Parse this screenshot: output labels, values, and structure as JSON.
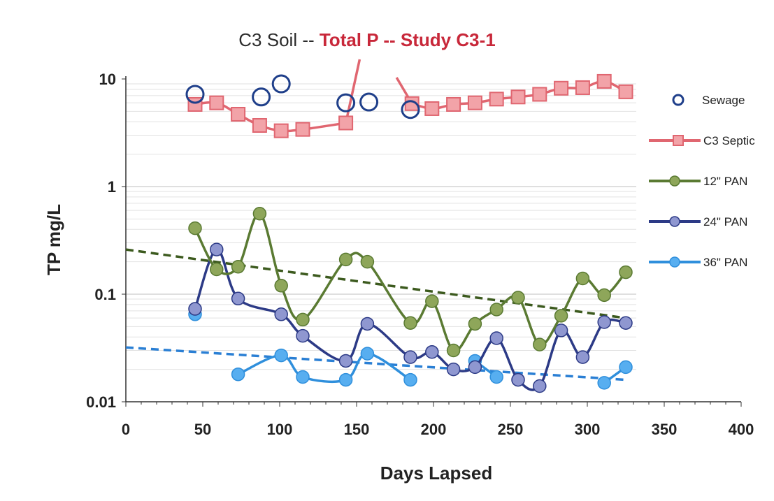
{
  "chart_data": {
    "type": "line",
    "title_parts": [
      "C3 Soil -- ",
      "Total P -- Study C3-1"
    ],
    "xlabel": "Days Lapsed",
    "ylabel": "TP mg/L",
    "xlim": [
      0,
      400
    ],
    "ylim": [
      0.01,
      10
    ],
    "yscale": "log",
    "x_ticks": [
      "0",
      "50",
      "100",
      "150",
      "200",
      "250",
      "300",
      "350",
      "400"
    ],
    "y_ticks": [
      "0.01",
      "0.1",
      "1",
      "10"
    ],
    "grid": true,
    "legend_position": "right",
    "series": [
      {
        "name": "Sewage",
        "color": "#1f3f8a",
        "style": "markers",
        "marker": "open-circle",
        "x": [
          45,
          88,
          101,
          143,
          158,
          185
        ],
        "y": [
          7.2,
          6.8,
          9.0,
          6.0,
          6.1,
          5.2
        ]
      },
      {
        "name": "C3 Septic",
        "color": "#e06670",
        "style": "line",
        "marker": "square",
        "x": [
          45,
          59,
          73,
          87,
          101,
          115,
          143,
          186,
          199,
          213,
          227,
          241,
          255,
          269,
          283,
          297,
          311,
          325
        ],
        "y": [
          5.8,
          6.0,
          4.7,
          3.7,
          3.3,
          3.4,
          3.9,
          5.9,
          5.3,
          5.8,
          6.0,
          6.5,
          6.8,
          7.2,
          8.2,
          8.3,
          9.5,
          7.6
        ]
      },
      {
        "name": "12\" PAN",
        "color": "#5a7a32",
        "style": "line",
        "marker": "circle",
        "x": [
          45,
          59,
          73,
          87,
          101,
          115,
          143,
          157,
          185,
          199,
          213,
          227,
          241,
          255,
          269,
          283,
          297,
          311,
          325
        ],
        "y": [
          0.41,
          0.17,
          0.18,
          0.56,
          0.12,
          0.058,
          0.21,
          0.2,
          0.054,
          0.086,
          0.03,
          0.053,
          0.072,
          0.093,
          0.034,
          0.063,
          0.14,
          0.098,
          0.16
        ]
      },
      {
        "name": "24\" PAN",
        "color": "#2c3a86",
        "style": "line",
        "marker": "circle",
        "x": [
          45,
          59,
          73,
          101,
          115,
          143,
          157,
          185,
          199,
          213,
          227,
          241,
          255,
          269,
          283,
          297,
          311,
          325
        ],
        "y": [
          0.073,
          0.26,
          0.091,
          0.065,
          0.041,
          0.024,
          0.053,
          0.026,
          0.029,
          0.02,
          0.021,
          0.039,
          0.016,
          0.014,
          0.046,
          0.026,
          0.055,
          0.054
        ]
      },
      {
        "name": "36\" PAN",
        "color": "#2f8fdc",
        "style": "line",
        "marker": "circle",
        "x": [
          45,
          73,
          101,
          115,
          143,
          157,
          185,
          227,
          241,
          311,
          325
        ],
        "y": [
          0.065,
          0.018,
          0.027,
          0.017,
          0.016,
          0.028,
          0.016,
          0.024,
          0.017,
          0.015,
          0.021
        ]
      }
    ],
    "trendlines": [
      {
        "of": "12\" PAN",
        "color": "#3c5a1e",
        "x": [
          0,
          325
        ],
        "y": [
          0.26,
          0.06
        ]
      },
      {
        "of": "36\" PAN",
        "color": "#2a7fd4",
        "x": [
          0,
          325
        ],
        "y": [
          0.032,
          0.016
        ]
      }
    ]
  }
}
